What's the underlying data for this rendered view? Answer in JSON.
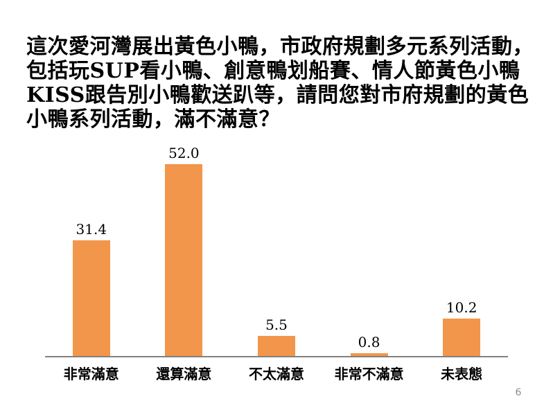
{
  "slide": {
    "page_number": "6"
  },
  "title": {
    "lines": [
      "這次愛河灣展出黃色小鴨，市政府規劃多元系列活動，",
      "包括玩SUP看小鴨、創意鴨划船賽、情人節黃色小鴨",
      "KISS跟告別小鴨歡送趴等，請問您對市府規劃的黃色",
      "小鴨系列活動，滿不滿意？"
    ]
  },
  "chart_data": {
    "type": "bar",
    "categories": [
      "非常滿意",
      "還算滿意",
      "不太滿意",
      "非常不滿意",
      "未表態"
    ],
    "values": [
      31.4,
      52.0,
      5.5,
      0.8,
      10.2
    ],
    "value_labels": [
      "31.4",
      "52.0",
      "5.5",
      "0.8",
      "10.2"
    ],
    "title": "",
    "xlabel": "",
    "ylabel": "",
    "ylim": [
      0,
      55
    ],
    "grid": false,
    "legend": false,
    "bar_color": "#F2964B",
    "axis_color": "#808080"
  },
  "colors": {
    "background": "#FFFFFF",
    "text": "#000000",
    "page_number": "#8A8A8A"
  }
}
